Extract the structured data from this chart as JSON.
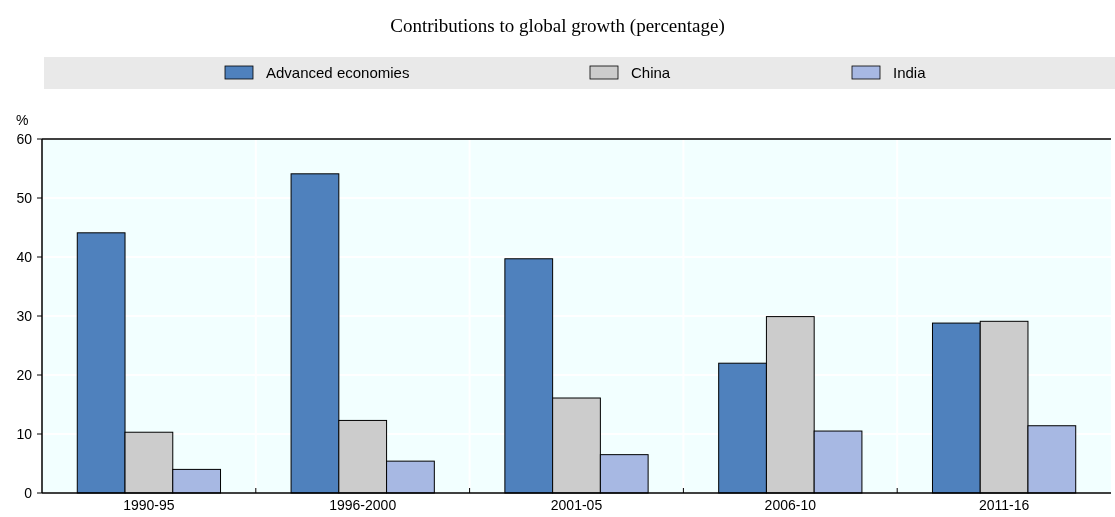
{
  "chart_data": {
    "type": "bar",
    "title": "Contributions to global growth (percentage)",
    "ylabel": "%",
    "categories": [
      "1990-95",
      "1996-2000",
      "2001-05",
      "2006-10",
      "2011-16"
    ],
    "series": [
      {
        "name": "Advanced economies",
        "color": "#4f81bd",
        "values": [
          44.1,
          54.1,
          39.7,
          22.0,
          28.8
        ]
      },
      {
        "name": "China",
        "color": "#cccccc",
        "values": [
          10.3,
          12.3,
          16.1,
          29.9,
          29.1
        ]
      },
      {
        "name": "India",
        "color": "#a7b8e3",
        "values": [
          4.0,
          5.4,
          6.5,
          10.5,
          11.4
        ]
      }
    ],
    "ylim": [
      0,
      60
    ],
    "yticks": [
      0,
      10,
      20,
      30,
      40,
      50,
      60
    ],
    "grid": true,
    "legend": "top"
  }
}
